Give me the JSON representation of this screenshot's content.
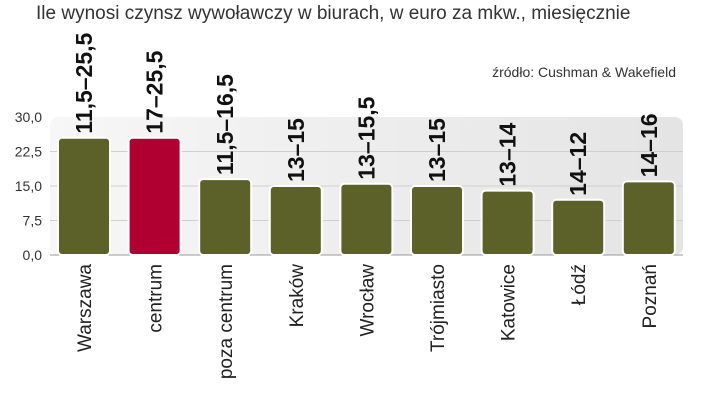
{
  "chart_data": {
    "type": "bar",
    "title": "Ile wynosi czynsz wywoławczy w biurach, w euro za mkw., miesięcznie",
    "source": "źródło: Cushman & Wakefield",
    "xlabel": "",
    "ylabel": "",
    "ylim": [
      0,
      30
    ],
    "yticks": [
      "0,0",
      "7,5",
      "15,0",
      "22,5",
      "30,0"
    ],
    "ytick_values": [
      0,
      7.5,
      15,
      22.5,
      30
    ],
    "grid": true,
    "categories": [
      "Warszawa",
      "centrum",
      "poza centrum",
      "Kraków",
      "Wrocław",
      "Trójmiasto",
      "Katowice",
      "Łódź",
      "Poznań"
    ],
    "values": [
      25.5,
      25.5,
      16.5,
      15,
      15.5,
      15,
      14,
      12,
      16
    ],
    "range_labels": [
      "11,5–25,5",
      "17–25,5",
      "11,5–16,5",
      "13–15",
      "13–15,5",
      "13–15",
      "13–14",
      "14–12",
      "14–16"
    ],
    "highlight_index": 1,
    "colors": {
      "bar": "#5b6128",
      "bar_highlight": "#b00032",
      "bar_outline": "#ffffff",
      "plot_background": "#eaeaea",
      "grid": "#cfcfcf"
    }
  }
}
